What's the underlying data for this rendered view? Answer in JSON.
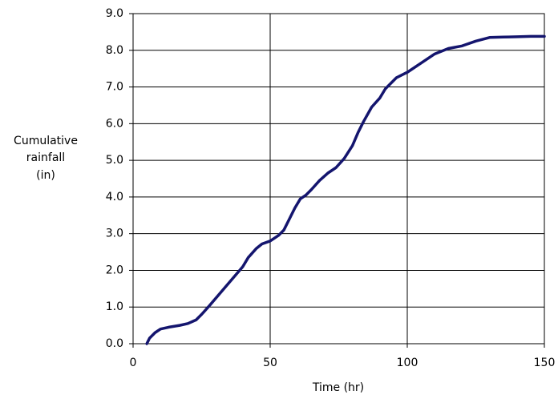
{
  "chart_data": {
    "type": "line",
    "xlabel": "Time (hr)",
    "ylabel": [
      "Cumulative",
      "rainfall",
      "(in)"
    ],
    "x": [
      5,
      6,
      8,
      10,
      13,
      17,
      20,
      23,
      25,
      28,
      32,
      36,
      40,
      42,
      45,
      47,
      50,
      53,
      55,
      57,
      59,
      61,
      63,
      65,
      68,
      71,
      74,
      77,
      80,
      82,
      84,
      87,
      90,
      92,
      96,
      100,
      105,
      110,
      115,
      120,
      125,
      130,
      135,
      140,
      145,
      150
    ],
    "values": [
      0.0,
      0.15,
      0.3,
      0.4,
      0.45,
      0.5,
      0.55,
      0.65,
      0.8,
      1.05,
      1.4,
      1.75,
      2.1,
      2.35,
      2.6,
      2.72,
      2.8,
      2.95,
      3.1,
      3.4,
      3.7,
      3.95,
      4.05,
      4.2,
      4.45,
      4.65,
      4.8,
      5.05,
      5.4,
      5.75,
      6.05,
      6.45,
      6.7,
      6.95,
      7.25,
      7.4,
      7.65,
      7.9,
      8.05,
      8.12,
      8.25,
      8.35,
      8.36,
      8.37,
      8.38,
      8.38
    ],
    "color": "#14156e",
    "xlim": [
      0,
      150
    ],
    "xticks": [
      0,
      50,
      100,
      150
    ],
    "ylim": [
      0,
      9
    ],
    "yticks": [
      {
        "value": 0,
        "label": "0.0"
      },
      {
        "value": 1,
        "label": "1.0"
      },
      {
        "value": 2,
        "label": "2.0"
      },
      {
        "value": 3,
        "label": "3.0"
      },
      {
        "value": 4,
        "label": "4.0"
      },
      {
        "value": 5,
        "label": "5.0"
      },
      {
        "value": 6,
        "label": "6.0"
      },
      {
        "value": 7,
        "label": "7.0"
      },
      {
        "value": 8,
        "label": "8.0"
      },
      {
        "value": 9,
        "label": "9.0"
      }
    ],
    "grid": true
  }
}
